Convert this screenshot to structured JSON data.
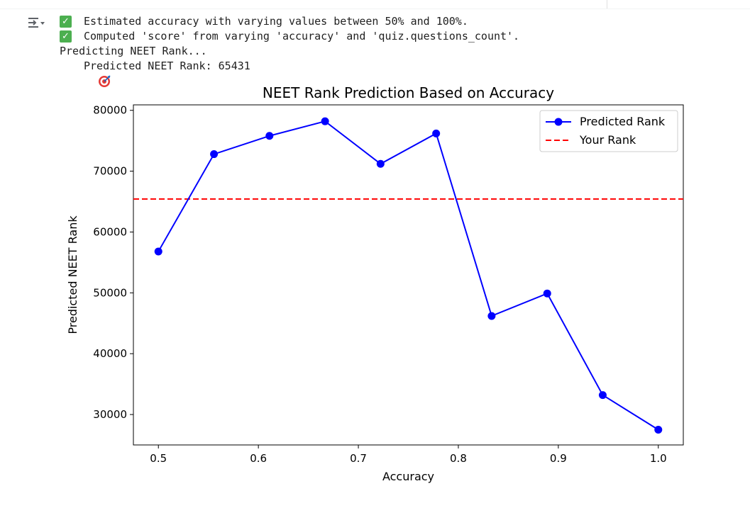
{
  "console": {
    "lines": [
      {
        "icon": "check",
        "text": "Estimated accuracy with varying values between 50% and 100%."
      },
      {
        "icon": "check",
        "text": "Computed 'score' from varying 'accuracy' and 'quiz.questions_count'."
      },
      {
        "icon": "",
        "text": "Predicting NEET Rank..."
      },
      {
        "icon": "target",
        "text": "Predicted NEET Rank: 65431"
      }
    ]
  },
  "chart_data": {
    "type": "line",
    "title": "NEET Rank Prediction Based on Accuracy",
    "xlabel": "Accuracy",
    "ylabel": "Predicted NEET Rank",
    "xlim": [
      0.475,
      1.025
    ],
    "ylim": [
      25000,
      80900
    ],
    "xticks": [
      0.5,
      0.6,
      0.7,
      0.8,
      0.9,
      1.0
    ],
    "xtick_labels": [
      "0.5",
      "0.6",
      "0.7",
      "0.8",
      "0.9",
      "1.0"
    ],
    "yticks": [
      30000,
      40000,
      50000,
      60000,
      70000,
      80000
    ],
    "ytick_labels": [
      "30000",
      "40000",
      "50000",
      "60000",
      "70000",
      "80000"
    ],
    "series": [
      {
        "name": "Predicted Rank",
        "color": "#0000ff",
        "marker": "circle",
        "x": [
          0.5,
          0.5556,
          0.6111,
          0.6667,
          0.7222,
          0.7778,
          0.8333,
          0.8889,
          0.9444,
          1.0
        ],
        "y": [
          56800,
          72800,
          75800,
          78200,
          71200,
          76200,
          46200,
          49900,
          33200,
          27500
        ]
      }
    ],
    "hlines": [
      {
        "name": "Your Rank",
        "value": 65431,
        "color": "#ff0000",
        "style": "dashed"
      }
    ],
    "legend": {
      "position": "top-right",
      "entries": [
        "Predicted Rank",
        "Your Rank"
      ]
    },
    "grid": false
  }
}
